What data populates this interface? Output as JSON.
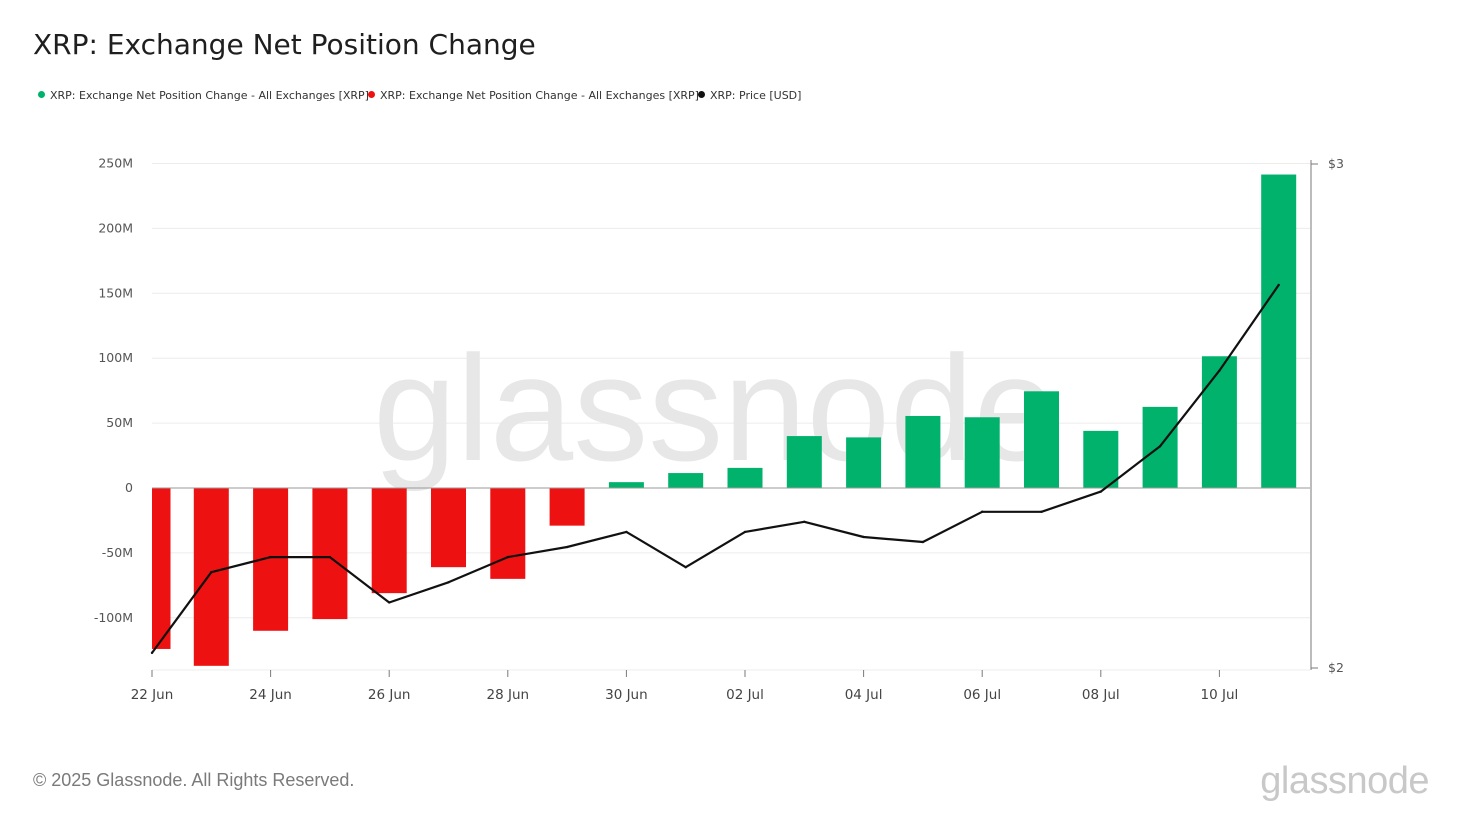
{
  "title": "XRP: Exchange Net Position Change",
  "legend": [
    {
      "label": "XRP: Exchange Net Position Change - All Exchanges [XRP]",
      "color": "#00b26b"
    },
    {
      "label": "XRP: Exchange Net Position Change - All Exchanges [XRP]",
      "color": "#ee1111"
    },
    {
      "label": "XRP: Price [USD]",
      "color": "#111111"
    }
  ],
  "watermark": "glassnode",
  "footer": {
    "copyright": "© 2025 Glassnode. All Rights Reserved.",
    "brand": "glassnode"
  },
  "colors": {
    "positive": "#00b26b",
    "negative": "#ee1111",
    "price": "#111111",
    "grid": "#ececec",
    "axis": "#7a7a7a"
  },
  "chart_data": {
    "type": "bar",
    "title": "XRP: Exchange Net Position Change",
    "x": [
      "22 Jun",
      "23 Jun",
      "24 Jun",
      "25 Jun",
      "26 Jun",
      "27 Jun",
      "28 Jun",
      "29 Jun",
      "30 Jun",
      "01 Jul",
      "02 Jul",
      "03 Jul",
      "04 Jul",
      "05 Jul",
      "06 Jul",
      "07 Jul",
      "08 Jul",
      "09 Jul",
      "10 Jul",
      "11 Jul"
    ],
    "x_tick_labels": [
      "22 Jun",
      "24 Jun",
      "26 Jun",
      "28 Jun",
      "30 Jun",
      "02 Jul",
      "04 Jul",
      "06 Jul",
      "08 Jul",
      "10 Jul"
    ],
    "series": [
      {
        "name": "XRP: Exchange Net Position Change - All Exchanges [XRP]",
        "axis": "left",
        "values": [
          -124000000,
          -137000000,
          -110000000,
          -101000000,
          -81000000,
          -61000000,
          -70000000,
          -29000000,
          4500000,
          11500000,
          15500000,
          40000000,
          39000000,
          55500000,
          54500000,
          74500000,
          44000000,
          62500000,
          101500000,
          241500000
        ]
      },
      {
        "name": "XRP: Price [USD]",
        "axis": "right",
        "type": "line",
        "values": [
          2.03,
          2.19,
          2.22,
          2.22,
          2.13,
          2.17,
          2.22,
          2.24,
          2.27,
          2.2,
          2.27,
          2.29,
          2.26,
          2.25,
          2.31,
          2.31,
          2.35,
          2.44,
          2.59,
          2.76
        ]
      }
    ],
    "y_left": {
      "ticks": [
        -100000000,
        -50000000,
        0,
        50000000,
        100000000,
        150000000,
        200000000,
        250000000
      ],
      "tick_labels": [
        "-100M",
        "-50M",
        "0",
        "50M",
        "100M",
        "150M",
        "200M",
        "250M"
      ]
    },
    "y_right": {
      "ticks": [
        2,
        3
      ],
      "tick_labels": [
        "$2",
        "$3"
      ],
      "ylim": [
        2,
        3
      ]
    },
    "grid": true
  }
}
